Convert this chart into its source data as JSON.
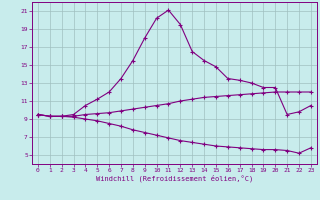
{
  "xlabel": "Windchill (Refroidissement éolien,°C)",
  "background_color": "#c8ecec",
  "line_color": "#800080",
  "grid_color": "#a0c0c0",
  "xlim": [
    -0.5,
    23.5
  ],
  "ylim": [
    4,
    22
  ],
  "xticks": [
    0,
    1,
    2,
    3,
    4,
    5,
    6,
    7,
    8,
    9,
    10,
    11,
    12,
    13,
    14,
    15,
    16,
    17,
    18,
    19,
    20,
    21,
    22,
    23
  ],
  "yticks": [
    5,
    7,
    9,
    11,
    13,
    15,
    17,
    19,
    21
  ],
  "line1_x": [
    0,
    1,
    2,
    3,
    4,
    5,
    6,
    7,
    8,
    9,
    10,
    11,
    12,
    13,
    14,
    15,
    16,
    17,
    18,
    19,
    20,
    21,
    22,
    23
  ],
  "line1_y": [
    9.5,
    9.3,
    9.3,
    9.5,
    10.5,
    11.2,
    12.0,
    13.5,
    15.5,
    18.0,
    20.2,
    21.1,
    19.5,
    16.5,
    15.5,
    14.8,
    13.5,
    13.3,
    13.0,
    12.5,
    12.5,
    9.5,
    9.8,
    10.5
  ],
  "line2_x": [
    0,
    1,
    2,
    3,
    4,
    5,
    6,
    7,
    8,
    9,
    10,
    11,
    12,
    13,
    14,
    15,
    16,
    17,
    18,
    19,
    20,
    21,
    22,
    23
  ],
  "line2_y": [
    9.5,
    9.3,
    9.3,
    9.3,
    9.5,
    9.6,
    9.7,
    9.9,
    10.1,
    10.3,
    10.5,
    10.7,
    11.0,
    11.2,
    11.4,
    11.5,
    11.6,
    11.7,
    11.8,
    11.9,
    12.0,
    12.0,
    12.0,
    12.0
  ],
  "line3_x": [
    0,
    1,
    2,
    3,
    4,
    5,
    6,
    7,
    8,
    9,
    10,
    11,
    12,
    13,
    14,
    15,
    16,
    17,
    18,
    19,
    20,
    21,
    22,
    23
  ],
  "line3_y": [
    9.5,
    9.3,
    9.3,
    9.2,
    9.0,
    8.8,
    8.5,
    8.2,
    7.8,
    7.5,
    7.2,
    6.9,
    6.6,
    6.4,
    6.2,
    6.0,
    5.9,
    5.8,
    5.7,
    5.6,
    5.6,
    5.5,
    5.2,
    5.8
  ],
  "marker": "+",
  "markersize": 3,
  "linewidth": 0.8
}
